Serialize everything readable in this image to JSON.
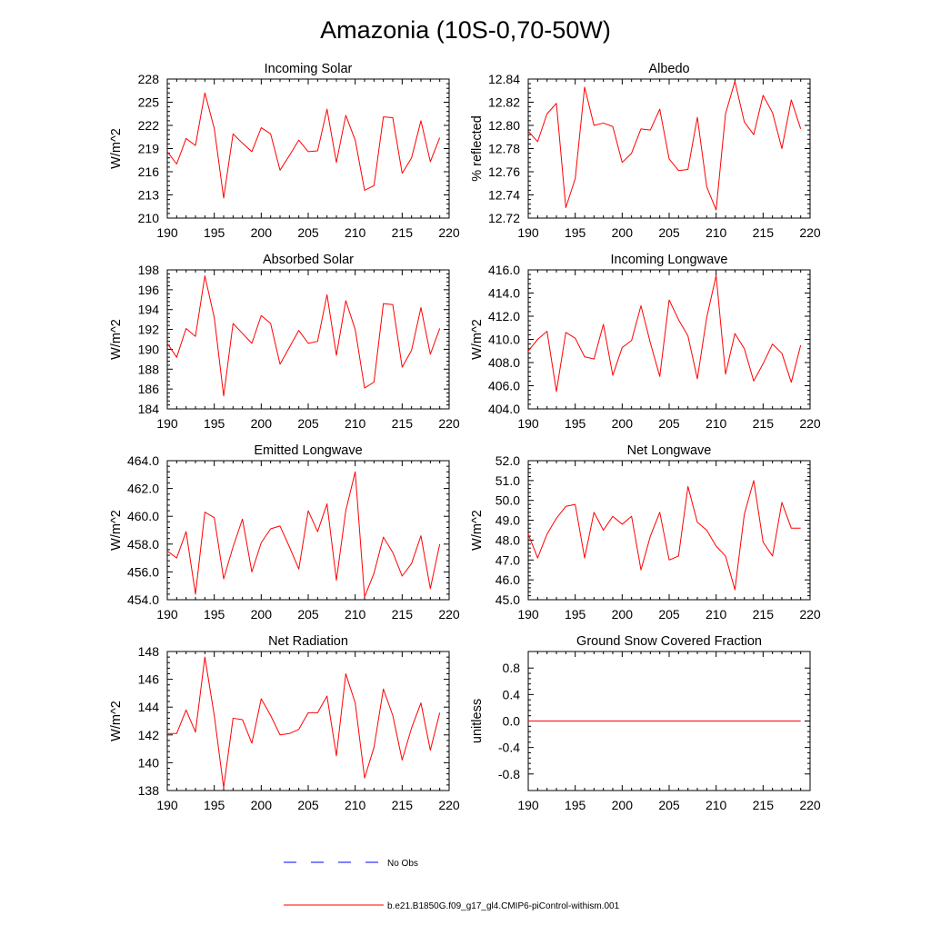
{
  "page": {
    "title": "Amazonia (10S-0,70-50W)"
  },
  "colors": {
    "model_line": "#ff0000",
    "obs_line": "#0000ff",
    "axis": "#000000"
  },
  "legend": {
    "placement": "bottom-center",
    "obs_label": "No Obs",
    "model_label": "b.e21.B1850G.f09_g17_gl4.CMIP6-piControl-withism.001"
  },
  "chart_data": [
    {
      "type": "line",
      "title": "Incoming Solar",
      "xlabel": "",
      "ylabel": "W/m^2",
      "xlim": [
        190,
        220
      ],
      "ylim": [
        210,
        228
      ],
      "xticks": [
        190,
        195,
        200,
        205,
        210,
        215,
        220
      ],
      "yticks": [
        210,
        213,
        216,
        219,
        222,
        225,
        228
      ],
      "ytick_decimals": 0,
      "grid": false,
      "x": [
        190,
        191,
        192,
        193,
        194,
        195,
        196,
        197,
        198,
        199,
        200,
        201,
        202,
        203,
        204,
        205,
        206,
        207,
        208,
        209,
        210,
        211,
        212,
        213,
        214,
        215,
        216,
        217,
        218,
        219
      ],
      "series": [
        {
          "name": "b.e21.B1850G.f09_g17_gl4.CMIP6-piControl-withism.001",
          "values": [
            218.6,
            217.0,
            220.3,
            219.4,
            226.2,
            221.6,
            212.6,
            220.9,
            219.7,
            218.6,
            221.7,
            220.9,
            216.2,
            218.1,
            220.1,
            218.6,
            218.7,
            224.1,
            217.2,
            223.3,
            220.1,
            213.6,
            214.2,
            223.1,
            223.0,
            215.8,
            217.8,
            222.6,
            217.3,
            220.4
          ]
        }
      ]
    },
    {
      "type": "line",
      "title": "Albedo",
      "xlabel": "",
      "ylabel": "% reflected",
      "xlim": [
        190,
        220
      ],
      "ylim": [
        12.72,
        12.84
      ],
      "xticks": [
        190,
        195,
        200,
        205,
        210,
        215,
        220
      ],
      "yticks": [
        12.72,
        12.74,
        12.76,
        12.78,
        12.8,
        12.82,
        12.84
      ],
      "ytick_decimals": 2,
      "grid": false,
      "x": [
        190,
        191,
        192,
        193,
        194,
        195,
        196,
        197,
        198,
        199,
        200,
        201,
        202,
        203,
        204,
        205,
        206,
        207,
        208,
        209,
        210,
        211,
        212,
        213,
        214,
        215,
        216,
        217,
        218,
        219
      ],
      "series": [
        {
          "name": "b.e21.B1850G.f09_g17_gl4.CMIP6-piControl-withism.001",
          "values": [
            12.795,
            12.786,
            12.81,
            12.819,
            12.729,
            12.754,
            12.833,
            12.8,
            12.802,
            12.799,
            12.768,
            12.776,
            12.797,
            12.796,
            12.814,
            12.771,
            12.761,
            12.762,
            12.807,
            12.747,
            12.727,
            12.81,
            12.838,
            12.803,
            12.792,
            12.826,
            12.811,
            12.78,
            12.822,
            12.797
          ]
        }
      ]
    },
    {
      "type": "line",
      "title": "Absorbed Solar",
      "xlabel": "",
      "ylabel": "W/m^2",
      "xlim": [
        190,
        220
      ],
      "ylim": [
        184,
        198
      ],
      "xticks": [
        190,
        195,
        200,
        205,
        210,
        215,
        220
      ],
      "yticks": [
        184,
        186,
        188,
        190,
        192,
        194,
        196,
        198
      ],
      "ytick_decimals": 0,
      "grid": false,
      "x": [
        190,
        191,
        192,
        193,
        194,
        195,
        196,
        197,
        198,
        199,
        200,
        201,
        202,
        203,
        204,
        205,
        206,
        207,
        208,
        209,
        210,
        211,
        212,
        213,
        214,
        215,
        216,
        217,
        218,
        219
      ],
      "series": [
        {
          "name": "b.e21.B1850G.f09_g17_gl4.CMIP6-piControl-withism.001",
          "values": [
            190.6,
            189.2,
            192.1,
            191.3,
            197.4,
            193.2,
            185.3,
            192.6,
            191.6,
            190.6,
            193.4,
            192.6,
            188.5,
            190.2,
            191.9,
            190.6,
            190.8,
            195.5,
            189.4,
            194.9,
            192.0,
            186.1,
            186.7,
            194.6,
            194.5,
            188.2,
            189.9,
            194.2,
            189.5,
            192.1
          ]
        }
      ]
    },
    {
      "type": "line",
      "title": "Incoming Longwave",
      "xlabel": "",
      "ylabel": "W/m^2",
      "xlim": [
        190,
        220
      ],
      "ylim": [
        404.0,
        416.0
      ],
      "xticks": [
        190,
        195,
        200,
        205,
        210,
        215,
        220
      ],
      "yticks": [
        404.0,
        406.0,
        408.0,
        410.0,
        412.0,
        414.0,
        416.0
      ],
      "ytick_decimals": 1,
      "grid": false,
      "x": [
        190,
        191,
        192,
        193,
        194,
        195,
        196,
        197,
        198,
        199,
        200,
        201,
        202,
        203,
        204,
        205,
        206,
        207,
        208,
        209,
        210,
        211,
        212,
        213,
        214,
        215,
        216,
        217,
        218,
        219
      ],
      "series": [
        {
          "name": "b.e21.B1850G.f09_g17_gl4.CMIP6-piControl-withism.001",
          "values": [
            409.0,
            410.0,
            410.7,
            405.5,
            410.6,
            410.1,
            408.5,
            408.3,
            411.3,
            406.9,
            409.3,
            409.9,
            412.9,
            409.7,
            406.8,
            413.4,
            411.7,
            410.3,
            406.6,
            411.9,
            415.5,
            407.0,
            410.5,
            409.2,
            406.4,
            407.9,
            409.6,
            408.8,
            406.3,
            409.5
          ]
        }
      ]
    },
    {
      "type": "line",
      "title": "Emitted Longwave",
      "xlabel": "",
      "ylabel": "W/m^2",
      "xlim": [
        190,
        220
      ],
      "ylim": [
        454.0,
        464.0
      ],
      "xticks": [
        190,
        195,
        200,
        205,
        210,
        215,
        220
      ],
      "yticks": [
        454.0,
        456.0,
        458.0,
        460.0,
        462.0,
        464.0
      ],
      "ytick_decimals": 1,
      "grid": false,
      "x": [
        190,
        191,
        192,
        193,
        194,
        195,
        196,
        197,
        198,
        199,
        200,
        201,
        202,
        203,
        204,
        205,
        206,
        207,
        208,
        209,
        210,
        211,
        212,
        213,
        214,
        215,
        216,
        217,
        218,
        219
      ],
      "series": [
        {
          "name": "b.e21.B1850G.f09_g17_gl4.CMIP6-piControl-withism.001",
          "values": [
            457.5,
            457.0,
            458.9,
            454.4,
            460.3,
            459.9,
            455.5,
            457.8,
            459.8,
            456.0,
            458.1,
            459.1,
            459.3,
            457.8,
            456.2,
            460.4,
            458.9,
            460.9,
            455.4,
            460.4,
            463.2,
            454.2,
            455.9,
            458.5,
            457.4,
            455.7,
            456.6,
            458.6,
            454.8,
            458.0
          ]
        }
      ]
    },
    {
      "type": "line",
      "title": "Net Longwave",
      "xlabel": "",
      "ylabel": "W/m^2",
      "xlim": [
        190,
        220
      ],
      "ylim": [
        45.0,
        52.0
      ],
      "xticks": [
        190,
        195,
        200,
        205,
        210,
        215,
        220
      ],
      "yticks": [
        45.0,
        46.0,
        47.0,
        48.0,
        49.0,
        50.0,
        51.0,
        52.0
      ],
      "ytick_decimals": 1,
      "grid": false,
      "x": [
        190,
        191,
        192,
        193,
        194,
        195,
        196,
        197,
        198,
        199,
        200,
        201,
        202,
        203,
        204,
        205,
        206,
        207,
        208,
        209,
        210,
        211,
        212,
        213,
        214,
        215,
        216,
        217,
        218,
        219
      ],
      "series": [
        {
          "name": "b.e21.B1850G.f09_g17_gl4.CMIP6-piControl-withism.001",
          "values": [
            48.3,
            47.1,
            48.3,
            49.1,
            49.7,
            49.8,
            47.1,
            49.4,
            48.5,
            49.2,
            48.8,
            49.2,
            46.5,
            48.2,
            49.4,
            47.0,
            47.2,
            50.7,
            48.9,
            48.5,
            47.7,
            47.2,
            45.5,
            49.3,
            51.0,
            47.9,
            47.2,
            49.9,
            48.6,
            48.6
          ]
        }
      ]
    },
    {
      "type": "line",
      "title": "Net Radiation",
      "xlabel": "",
      "ylabel": "W/m^2",
      "xlim": [
        190,
        220
      ],
      "ylim": [
        138,
        148
      ],
      "xticks": [
        190,
        195,
        200,
        205,
        210,
        215,
        220
      ],
      "yticks": [
        138,
        140,
        142,
        144,
        146,
        148
      ],
      "ytick_decimals": 0,
      "grid": false,
      "x": [
        190,
        191,
        192,
        193,
        194,
        195,
        196,
        197,
        198,
        199,
        200,
        201,
        202,
        203,
        204,
        205,
        206,
        207,
        208,
        209,
        210,
        211,
        212,
        213,
        214,
        215,
        216,
        217,
        218,
        219
      ],
      "series": [
        {
          "name": "b.e21.B1850G.f09_g17_gl4.CMIP6-piControl-withism.001",
          "values": [
            142.1,
            142.1,
            143.8,
            142.2,
            147.6,
            143.4,
            138.2,
            143.2,
            143.1,
            141.4,
            144.6,
            143.4,
            142.0,
            142.1,
            142.4,
            143.6,
            143.6,
            144.8,
            140.5,
            146.4,
            144.3,
            138.9,
            141.1,
            145.3,
            143.4,
            140.2,
            142.5,
            144.3,
            140.9,
            143.6
          ]
        }
      ]
    },
    {
      "type": "line",
      "title": "Ground Snow Covered Fraction",
      "xlabel": "",
      "ylabel": "unitless",
      "xlim": [
        190,
        220
      ],
      "ylim": [
        -1.05,
        1.05
      ],
      "xticks": [
        190,
        195,
        200,
        205,
        210,
        215,
        220
      ],
      "yticks": [
        -0.8,
        -0.4,
        0.0,
        0.4,
        0.8
      ],
      "ytick_decimals": 1,
      "grid": false,
      "x": [
        190,
        191,
        192,
        193,
        194,
        195,
        196,
        197,
        198,
        199,
        200,
        201,
        202,
        203,
        204,
        205,
        206,
        207,
        208,
        209,
        210,
        211,
        212,
        213,
        214,
        215,
        216,
        217,
        218,
        219
      ],
      "series": [
        {
          "name": "b.e21.B1850G.f09_g17_gl4.CMIP6-piControl-withism.001",
          "values": [
            0,
            0,
            0,
            0,
            0,
            0,
            0,
            0,
            0,
            0,
            0,
            0,
            0,
            0,
            0,
            0,
            0,
            0,
            0,
            0,
            0,
            0,
            0,
            0,
            0,
            0,
            0,
            0,
            0,
            0
          ]
        }
      ]
    }
  ]
}
